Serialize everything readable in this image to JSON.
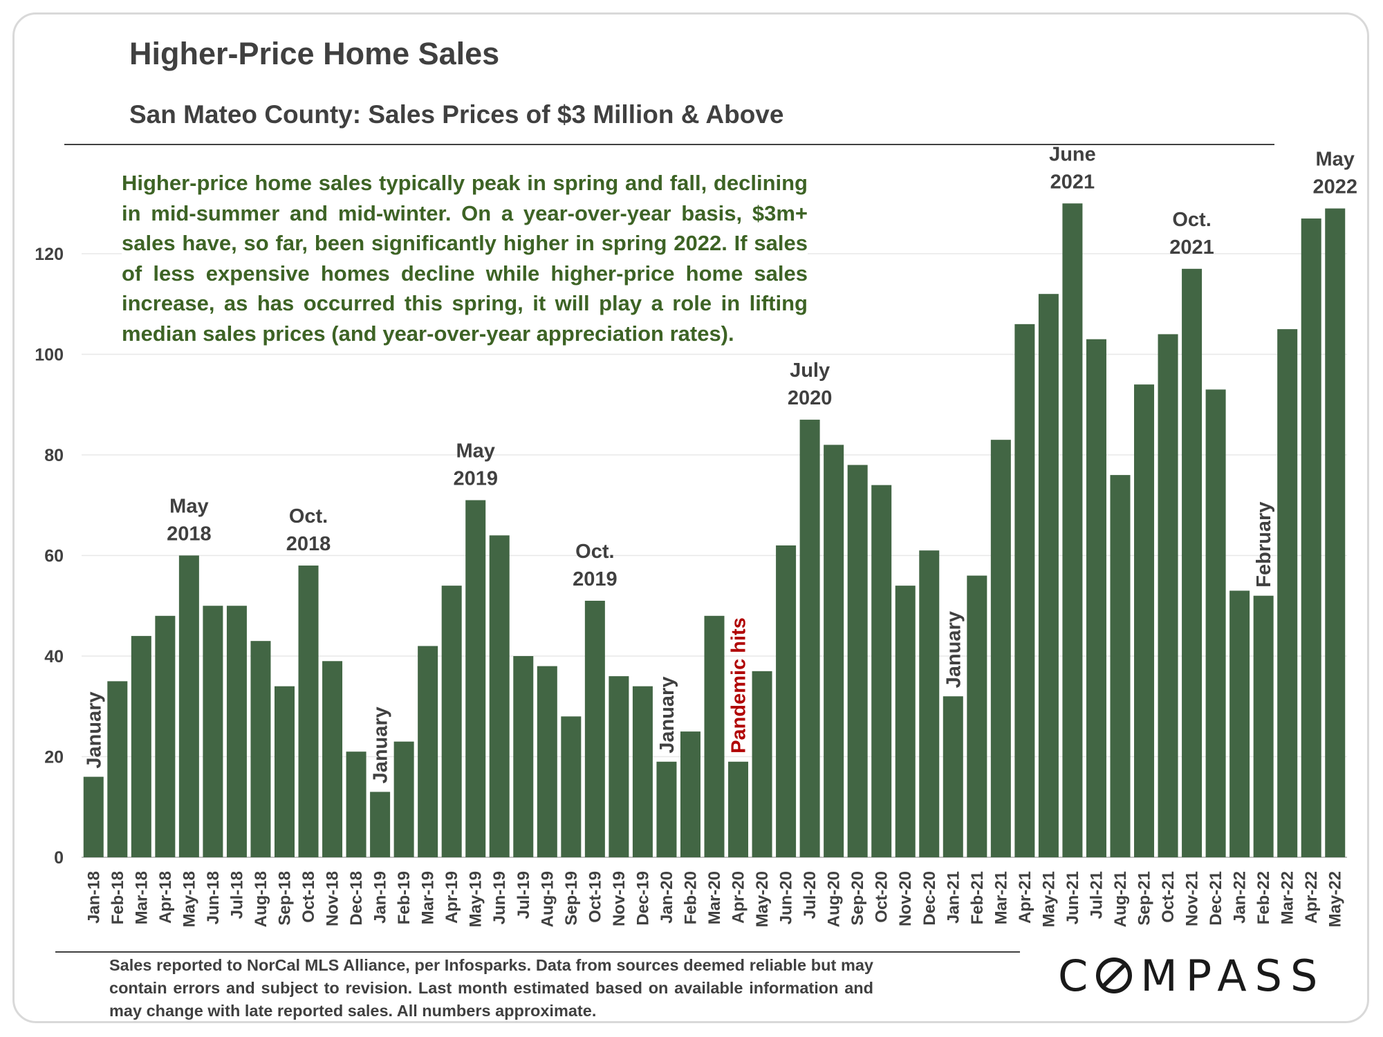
{
  "title": "Higher-Price Home Sales",
  "subtitle": "San Mateo County: Sales Prices of $3 Million & Above",
  "note": "Higher-price home sales typically peak in spring and fall, declining in mid-summer and mid-winter. On a year-over-year basis, $3m+ sales have, so far, been significantly higher in spring 2022. If sales of less expensive homes decline while higher-price home sales increase, as has occurred this spring, it will play a role in lifting median sales prices (and year-over-year appreciation rates).",
  "footer": "Sales reported to NorCal MLS Alliance, per Infosparks. Data from sources deemed reliable but may contain errors and subject to revision. Last month estimated based on available information and may change with late reported sales. All numbers approximate.",
  "logo": {
    "before": "C",
    "after": "MPASS"
  },
  "colors": {
    "bar": "#426644",
    "annotation_red": "#b00000",
    "text": "#404040"
  },
  "chart_data": {
    "type": "bar",
    "title": "San Mateo County: Sales Prices of $3 Million & Above",
    "xlabel": "",
    "ylabel": "",
    "ylim": [
      0,
      130
    ],
    "yticks": [
      0,
      20,
      40,
      60,
      80,
      100,
      120
    ],
    "grid": true,
    "legend": "none",
    "categories": [
      "Jan-18",
      "Feb-18",
      "Mar-18",
      "Apr-18",
      "May-18",
      "Jun-18",
      "Jul-18",
      "Aug-18",
      "Sep-18",
      "Oct-18",
      "Nov-18",
      "Dec-18",
      "Jan-19",
      "Feb-19",
      "Mar-19",
      "Apr-19",
      "May-19",
      "Jun-19",
      "Jul-19",
      "Aug-19",
      "Sep-19",
      "Oct-19",
      "Nov-19",
      "Dec-19",
      "Jan-20",
      "Feb-20",
      "Mar-20",
      "Apr-20",
      "May-20",
      "Jun-20",
      "Jul-20",
      "Aug-20",
      "Sep-20",
      "Oct-20",
      "Nov-20",
      "Dec-20",
      "Jan-21",
      "Feb-21",
      "Mar-21",
      "Apr-21",
      "May-21",
      "Jun-21",
      "Jul-21",
      "Aug-21",
      "Sep-21",
      "Oct-21",
      "Nov-21",
      "Dec-21",
      "Jan-22",
      "Feb-22",
      "Mar-22",
      "Apr-22",
      "May-22"
    ],
    "values": [
      16,
      35,
      44,
      48,
      60,
      50,
      50,
      43,
      34,
      58,
      39,
      21,
      13,
      23,
      42,
      54,
      71,
      64,
      40,
      38,
      28,
      51,
      36,
      34,
      19,
      25,
      48,
      19,
      37,
      62,
      87,
      82,
      78,
      74,
      54,
      61,
      32,
      56,
      83,
      106,
      112,
      130,
      103,
      76,
      94,
      104,
      117,
      93,
      53,
      52,
      105,
      127,
      129
    ],
    "annotations": [
      {
        "index": 0,
        "text": "January",
        "orientation": "vertical"
      },
      {
        "index": 4,
        "lines": [
          "May",
          "2018"
        ]
      },
      {
        "index": 9,
        "lines": [
          "Oct.",
          "2018"
        ]
      },
      {
        "index": 12,
        "text": "January",
        "orientation": "vertical"
      },
      {
        "index": 16,
        "lines": [
          "May",
          "2019"
        ]
      },
      {
        "index": 21,
        "lines": [
          "Oct.",
          "2019"
        ]
      },
      {
        "index": 24,
        "text": "January",
        "orientation": "vertical"
      },
      {
        "index": 27,
        "text": "Pandemic hits",
        "orientation": "vertical",
        "color": "red"
      },
      {
        "index": 30,
        "lines": [
          "July",
          "2020"
        ]
      },
      {
        "index": 36,
        "text": "January",
        "orientation": "vertical"
      },
      {
        "index": 41,
        "lines": [
          "June",
          "2021"
        ]
      },
      {
        "index": 46,
        "lines": [
          "Oct.",
          "2021"
        ]
      },
      {
        "index": 49,
        "text": "February",
        "orientation": "vertical"
      },
      {
        "index": 52,
        "lines": [
          "May",
          "2022"
        ]
      }
    ]
  }
}
